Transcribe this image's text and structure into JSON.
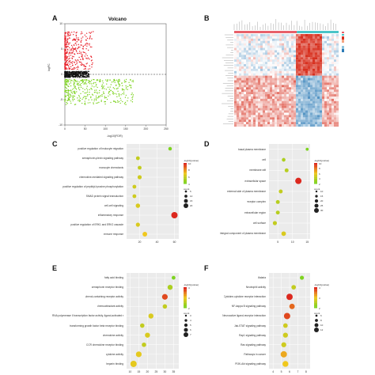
{
  "figure": {
    "panels": {
      "A": {
        "letter": "A",
        "title": "Volcano",
        "xlabel": "-log10(FDR)",
        "ylabel": "logFC"
      },
      "B": {
        "letter": "B"
      },
      "C": {
        "letter": "C"
      },
      "D": {
        "letter": "D"
      },
      "E": {
        "letter": "E"
      },
      "F": {
        "letter": "F"
      }
    },
    "legend": {
      "color_title": "-log10(pvalue)",
      "size_title": "count"
    }
  },
  "chart_data": [
    {
      "panel": "A",
      "type": "scatter",
      "title": "Volcano",
      "xlabel": "-log10(FDR)",
      "ylabel": "logFC",
      "xticks": [
        "0",
        "50",
        "100",
        "150",
        "200",
        "250"
      ],
      "yticks": [
        "10",
        "5",
        "0",
        "-5",
        "-10"
      ],
      "xlim": [
        0,
        250
      ],
      "ylim": [
        -10,
        10
      ],
      "threshold_line_y": 0,
      "series": [
        {
          "color": "#e8202a",
          "values": []
        },
        {
          "color": "#111111",
          "values": []
        },
        {
          "color": "#7ed321",
          "values": []
        }
      ]
    },
    {
      "panel": "B",
      "type": "heatmap",
      "colors": {
        "high": "#d7301f",
        "mid": "#ffffff",
        "low": "#2c7bb6"
      }
    },
    {
      "panel": "C",
      "type": "scatter",
      "categories": [
        "positive regulation of leukocyte migration",
        "semaphorin-plexin signaling pathway",
        "monocyte chemotaxis",
        "chemokine-mediated signaling pathway",
        "positive regulation of peptidyl-tyrosine phosphorylation",
        "SMAD protein signal transduction",
        "cell-cell signaling",
        "inflammatory response",
        "positive regulation of ERK1 and ERK2 cascade",
        "immune response"
      ],
      "x": [
        55,
        18,
        20,
        20,
        14,
        14,
        18,
        60,
        18,
        26
      ],
      "count": [
        6,
        7,
        7,
        8,
        7,
        7,
        9,
        16,
        8,
        10
      ],
      "pvalue_color": [
        0.0,
        0.3,
        0.3,
        0.35,
        0.35,
        0.35,
        0.4,
        1.0,
        0.4,
        0.5
      ],
      "xticks": [
        "20",
        "40",
        "60"
      ],
      "xlim": [
        5,
        65
      ],
      "legend_sizes": [
        "5",
        "10",
        "15",
        "20"
      ],
      "legend_color_ticks": [
        "10",
        "8",
        "6",
        "4"
      ]
    },
    {
      "panel": "D",
      "type": "scatter",
      "categories": [
        "basal plasma membrane",
        "cell",
        "membrane raft",
        "extracellular space",
        "external side of plasma membrane",
        "receptor complex",
        "extracellular region",
        "cell surface",
        "integral component of plasma membrane"
      ],
      "x": [
        15,
        7,
        8,
        12,
        6,
        5,
        5,
        4,
        7
      ],
      "count": [
        5,
        8,
        9,
        20,
        9,
        9,
        9,
        10,
        12
      ],
      "pvalue_color": [
        0.0,
        0.2,
        0.25,
        1.0,
        0.3,
        0.25,
        0.25,
        0.3,
        0.4
      ],
      "xticks": [
        "5",
        "10",
        "15"
      ],
      "xlim": [
        2,
        16
      ],
      "legend_sizes": [
        "10",
        "15",
        "20",
        "25",
        "30"
      ],
      "legend_color_ticks": [
        "10",
        "8",
        "6",
        "4",
        "2"
      ]
    },
    {
      "panel": "E",
      "type": "scatter",
      "categories": [
        "fatty acid binding",
        "semaphorin receptor binding",
        "phenol-containing receptor activity",
        "chemoattractant activity",
        "RNA polymerase II transcription factor activity, ligand-activated sequence-specific DNA binding",
        "transforming growth factor beta receptor binding",
        "chemokine activity",
        "CCR chemokine receptor binding",
        "cytokine activity",
        "heparin binding"
      ],
      "x": [
        35,
        33,
        30,
        30,
        22,
        17,
        20,
        18,
        15,
        12
      ],
      "count": [
        3,
        5,
        6,
        4,
        5,
        4,
        5,
        4,
        6,
        7
      ],
      "pvalue_color": [
        0.0,
        0.2,
        0.9,
        0.3,
        0.4,
        0.3,
        0.4,
        0.3,
        0.45,
        0.45
      ],
      "xticks": [
        "10",
        "15",
        "20",
        "25",
        "30",
        "35"
      ],
      "xlim": [
        8,
        38
      ],
      "legend_sizes": [
        "3",
        "4",
        "5",
        "6",
        "7"
      ],
      "legend_color_ticks": [
        "4",
        "3",
        "2"
      ]
    },
    {
      "panel": "F",
      "type": "scatter",
      "categories": [
        "Malaria",
        "Neutrophil activity",
        "Cytokine-cytokine receptor interaction",
        "NF-kappa B signaling pathway",
        "Neuroactive ligand-receptor interaction",
        "Jak-STAT signaling pathway",
        "Rap1 signaling pathway",
        "Ras signaling pathway",
        "Pathways in cancer",
        "PI3K-Akt signaling pathway"
      ],
      "x": [
        7.5,
        6.5,
        6.0,
        6.3,
        5.7,
        5.5,
        5.5,
        5.3,
        5.3,
        5.5
      ],
      "count": [
        5,
        6,
        10,
        8,
        10,
        6,
        7,
        7,
        10,
        9
      ],
      "pvalue_color": [
        0.0,
        0.3,
        1.0,
        0.8,
        0.9,
        0.35,
        0.35,
        0.35,
        0.6,
        0.5
      ],
      "xticks": [
        "4",
        "5",
        "6",
        "7",
        "8"
      ],
      "xlim": [
        3.5,
        8.5
      ],
      "legend_sizes": [
        "6",
        "8",
        "10",
        "12"
      ],
      "legend_color_ticks": [
        "4",
        "3",
        "2"
      ]
    }
  ]
}
